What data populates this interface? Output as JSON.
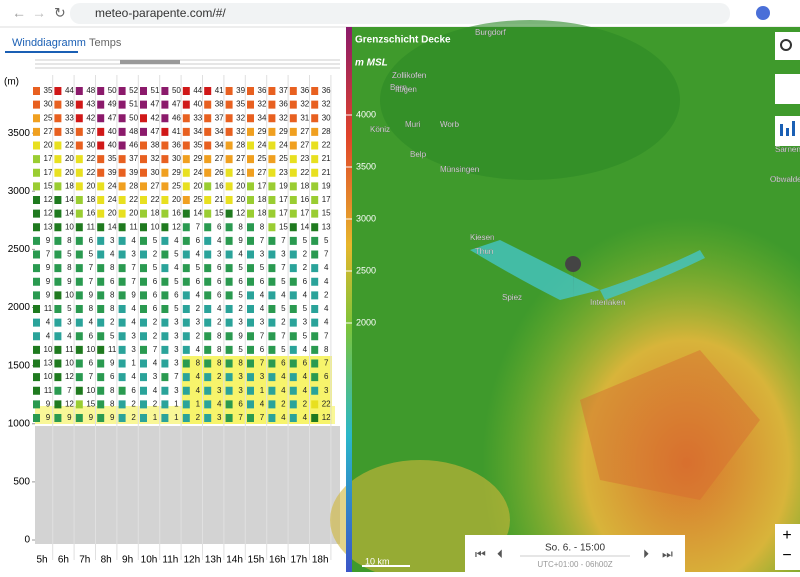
{
  "browser": {
    "url": "meteo-parapente.com/#/"
  },
  "tabs": [
    "Winddiagramm",
    "Temps"
  ],
  "wind": {
    "unit": "(m)",
    "ylim": [
      0,
      4000
    ],
    "yticks": [
      0,
      500,
      1000,
      1500,
      2000,
      2500,
      3000,
      3500
    ],
    "hours": [
      "5h",
      "6h",
      "7h",
      "8h",
      "9h",
      "10h",
      "11h",
      "12h",
      "13h",
      "14h",
      "15h",
      "16h",
      "17h",
      "18h"
    ],
    "rows": [
      [
        35,
        44,
        48,
        50,
        52,
        51,
        50,
        44,
        41,
        39,
        36,
        37,
        36,
        36
      ],
      [
        30,
        38,
        43,
        49,
        51,
        47,
        47,
        40,
        38,
        35,
        32,
        36,
        32,
        32
      ],
      [
        25,
        33,
        42,
        47,
        50,
        42,
        46,
        33,
        37,
        32,
        34,
        32,
        31,
        30
      ],
      [
        27,
        33,
        37,
        40,
        48,
        47,
        41,
        34,
        34,
        32,
        29,
        29,
        27,
        28
      ],
      [
        20,
        22,
        30,
        40,
        46,
        38,
        36,
        35,
        34,
        28,
        24,
        24,
        27,
        22
      ],
      [
        17,
        20,
        22,
        35,
        37,
        32,
        30,
        29,
        27,
        27,
        25,
        25,
        23,
        21
      ],
      [
        17,
        20,
        22,
        39,
        39,
        30,
        29,
        24,
        26,
        21,
        27,
        23,
        22,
        21
      ],
      [
        15,
        18,
        20,
        24,
        28,
        27,
        25,
        20,
        16,
        20,
        17,
        19,
        18,
        19
      ],
      [
        12,
        14,
        18,
        24,
        22,
        22,
        20,
        25,
        21,
        20,
        18,
        17,
        16,
        17
      ],
      [
        12,
        14,
        16,
        20,
        20,
        18,
        16,
        14,
        15,
        12,
        18,
        17,
        17,
        15
      ],
      [
        13,
        10,
        11,
        14,
        11,
        10,
        12,
        7,
        6,
        8,
        8,
        15,
        14,
        13
      ],
      [
        9,
        8,
        6,
        3,
        4,
        5,
        4,
        6,
        4,
        9,
        7,
        7,
        5,
        5
      ],
      [
        7,
        5,
        5,
        4,
        3,
        2,
        5,
        4,
        3,
        4,
        3,
        3,
        2,
        7
      ],
      [
        9,
        8,
        7,
        8,
        7,
        5,
        4,
        5,
        6,
        5,
        5,
        7,
        2,
        4
      ],
      [
        9,
        9,
        7,
        6,
        7,
        6,
        5,
        6,
        6,
        6,
        6,
        5,
        6,
        4
      ],
      [
        9,
        10,
        9,
        8,
        9,
        6,
        6,
        4,
        6,
        5,
        4,
        4,
        4,
        2
      ],
      [
        11,
        5,
        8,
        8,
        4,
        6,
        5,
        2,
        4,
        2,
        4,
        5,
        5,
        4
      ],
      [
        4,
        3,
        4,
        2,
        4,
        2,
        3,
        3,
        2,
        3,
        3,
        2,
        3,
        4
      ],
      [
        4,
        4,
        6,
        5,
        3,
        2,
        3,
        2,
        8,
        9,
        7,
        7,
        5,
        7
      ],
      [
        10,
        11,
        10,
        11,
        3,
        7,
        3,
        4,
        8,
        5,
        6,
        5,
        4,
        8
      ],
      [
        13,
        10,
        6,
        9,
        1,
        4,
        3,
        8,
        8,
        8,
        7,
        6,
        6,
        7
      ],
      [
        10,
        12,
        7,
        6,
        4,
        3,
        7,
        4,
        2,
        3,
        3,
        4,
        4,
        6
      ],
      [
        11,
        7,
        10,
        8,
        6,
        4,
        3,
        4,
        3,
        3,
        1,
        4,
        4,
        3
      ],
      [
        9,
        12,
        15,
        8,
        2,
        2,
        1,
        1,
        4,
        6,
        4,
        2,
        2,
        22
      ],
      [
        9,
        9,
        9,
        9,
        2,
        1,
        1,
        2,
        3,
        7,
        7,
        4,
        4,
        12
      ]
    ]
  },
  "map": {
    "legend_title": "Grenzschicht Decke",
    "legend_unit": "m MSL",
    "legend_ticks": [
      4000,
      3500,
      3000,
      2500,
      2000
    ],
    "places": [
      "Burgdorf",
      "Bern",
      "Zollikofen",
      "Ittigen",
      "Köniz",
      "Muri",
      "Worb",
      "Belp",
      "Münsingen",
      "Thun",
      "Spiez",
      "Interlaken",
      "Sarnen",
      "Obwalden",
      "Kiesen"
    ],
    "scale": "10 km"
  },
  "timebar": {
    "date": "So. 6. - 15:00",
    "zone": "UTC+01:00 - 06h00Z"
  }
}
